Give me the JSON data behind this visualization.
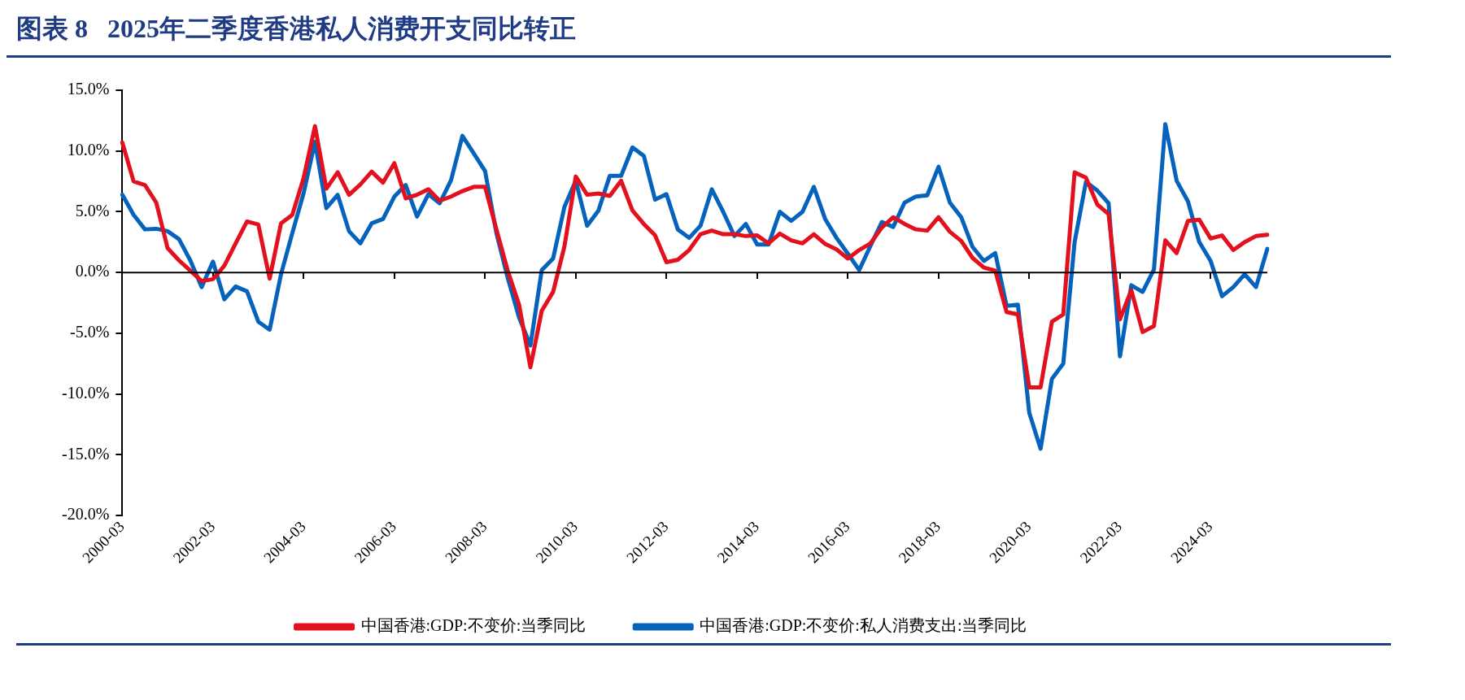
{
  "chart_data": {
    "type": "line",
    "title": "图表 8   2025年二季度香港私人消费开支同比转正",
    "categories": [
      "2000-03",
      null,
      null,
      null,
      null,
      null,
      null,
      null,
      "2002-03",
      null,
      null,
      null,
      null,
      null,
      null,
      null,
      "2004-03",
      null,
      null,
      null,
      null,
      null,
      null,
      null,
      "2006-03",
      null,
      null,
      null,
      null,
      null,
      null,
      null,
      "2008-03",
      null,
      null,
      null,
      null,
      null,
      null,
      null,
      "2010-03",
      null,
      null,
      null,
      null,
      null,
      null,
      null,
      "2012-03",
      null,
      null,
      null,
      null,
      null,
      null,
      null,
      "2014-03",
      null,
      null,
      null,
      null,
      null,
      null,
      null,
      "2016-03",
      null,
      null,
      null,
      null,
      null,
      null,
      null,
      "2018-03",
      null,
      null,
      null,
      null,
      null,
      null,
      null,
      "2020-03",
      null,
      null,
      null,
      null,
      null,
      null,
      null,
      "2022-03",
      null,
      null,
      null,
      null,
      null,
      null,
      null,
      "2024-03",
      null,
      null,
      null,
      null,
      null
    ],
    "series": [
      {
        "name": "中国香港:GDP:不变价:当季同比",
        "color": "#e3101e",
        "values": [
          10.7,
          7.5,
          7.2,
          5.75,
          2.0,
          1.0,
          0.15,
          -0.7,
          -0.55,
          0.55,
          2.4,
          4.2,
          3.95,
          -0.5,
          4.05,
          4.75,
          7.8,
          12.05,
          6.9,
          8.25,
          6.4,
          7.25,
          8.3,
          7.4,
          9.0,
          6.1,
          6.4,
          6.85,
          5.9,
          6.25,
          6.7,
          7.05,
          7.05,
          3.55,
          0.15,
          -2.65,
          -7.8,
          -3.15,
          -1.6,
          2.15,
          7.9,
          6.4,
          6.5,
          6.3,
          7.55,
          5.1,
          4.0,
          3.05,
          0.85,
          1.05,
          1.85,
          3.15,
          3.45,
          3.15,
          3.15,
          3.0,
          3.05,
          2.4,
          3.2,
          2.65,
          2.4,
          3.15,
          2.35,
          1.9,
          1.15,
          1.85,
          2.4,
          3.7,
          4.55,
          4.0,
          3.55,
          3.45,
          4.55,
          3.35,
          2.6,
          1.2,
          0.4,
          0.15,
          -3.25,
          -3.45,
          -9.45,
          -9.45,
          -4.05,
          -3.45,
          8.25,
          7.8,
          5.6,
          4.8,
          -3.85,
          -1.45,
          -4.9,
          -4.4,
          2.65,
          1.6,
          4.25,
          4.35,
          2.8,
          3.05,
          1.85,
          2.5,
          3.0,
          3.1
        ]
      },
      {
        "name": "中国香港:GDP:不变价:私人消费支出:当季同比",
        "color": "#0563bd",
        "values": [
          6.4,
          4.75,
          3.55,
          3.6,
          3.4,
          2.75,
          1.0,
          -1.2,
          0.9,
          -2.2,
          -1.15,
          -1.55,
          -4.05,
          -4.7,
          -0.15,
          3.25,
          6.55,
          10.75,
          5.3,
          6.4,
          3.4,
          2.4,
          4.05,
          4.4,
          6.25,
          7.2,
          4.6,
          6.45,
          5.7,
          7.6,
          11.25,
          9.8,
          8.35,
          3.25,
          -0.45,
          -3.7,
          -6.0,
          0.2,
          1.15,
          5.4,
          7.55,
          3.85,
          5.1,
          7.95,
          7.95,
          10.3,
          9.6,
          6.0,
          6.45,
          3.55,
          2.85,
          3.85,
          6.85,
          5.0,
          3.0,
          4.0,
          2.3,
          2.3,
          5.0,
          4.25,
          5.0,
          7.05,
          4.4,
          2.85,
          1.55,
          0.2,
          2.2,
          4.15,
          3.75,
          5.75,
          6.25,
          6.35,
          8.7,
          5.75,
          4.55,
          2.1,
          0.95,
          1.6,
          -2.75,
          -2.65,
          -11.55,
          -14.5,
          -8.75,
          -7.5,
          2.5,
          7.45,
          6.75,
          5.7,
          -6.9,
          -1.05,
          -1.6,
          0.25,
          12.2,
          7.55,
          5.85,
          2.5,
          0.95,
          -1.95,
          -1.2,
          -0.15,
          -1.2,
          1.95
        ]
      }
    ],
    "ylim": [
      -20,
      15
    ],
    "yticks": [
      {
        "value": -20,
        "label": "-20.0%"
      },
      {
        "value": -15,
        "label": "-15.0%"
      },
      {
        "value": -10,
        "label": "-10.0%"
      },
      {
        "value": -5,
        "label": "-5.0%"
      },
      {
        "value": 0,
        "label": "0.0%"
      },
      {
        "value": 5,
        "label": "5.0%"
      },
      {
        "value": 10,
        "label": "10.0%"
      },
      {
        "value": 15,
        "label": "15.0%"
      }
    ],
    "ref_lines": [
      {
        "axis": "y",
        "value": 0,
        "color": "#000000",
        "line_style": "solid"
      }
    ],
    "grid": false,
    "legend": "bottom",
    "marker": "none",
    "line_style": "solid"
  }
}
